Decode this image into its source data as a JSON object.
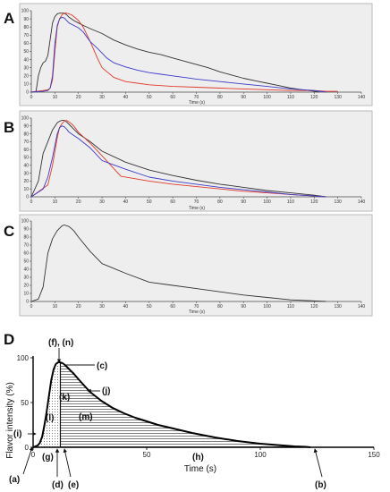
{
  "chart_data": [
    {
      "panel": "A",
      "type": "line",
      "xlabel": "Time (s)",
      "ylabel": "",
      "xlim": [
        0,
        140
      ],
      "ylim": [
        0,
        100
      ],
      "xticks": [
        0,
        10,
        20,
        30,
        40,
        50,
        60,
        70,
        80,
        90,
        100,
        110,
        120,
        130,
        140
      ],
      "yticks": [
        0,
        10,
        20,
        30,
        40,
        50,
        60,
        70,
        80,
        90,
        100
      ],
      "series": [
        {
          "color": "#333333",
          "x": [
            0,
            2,
            3,
            4,
            5,
            6,
            7,
            8,
            9,
            10,
            11,
            12,
            13,
            14,
            15,
            16,
            18,
            20,
            22,
            25,
            30,
            35,
            40,
            45,
            50,
            55,
            60,
            65,
            70,
            75,
            80,
            85,
            90,
            95,
            100,
            105,
            110,
            115,
            120,
            122
          ],
          "y": [
            0,
            1,
            20,
            30,
            36,
            38,
            45,
            65,
            85,
            93,
            96,
            97,
            97,
            97,
            95,
            92,
            88,
            85,
            82,
            78,
            72,
            64,
            58,
            53,
            49,
            46,
            42,
            38,
            34,
            30,
            25,
            21,
            17,
            14,
            11,
            8,
            5,
            3,
            1,
            0
          ]
        },
        {
          "color": "#e03a2a",
          "x": [
            0,
            5,
            7,
            8,
            9,
            10,
            11,
            12,
            13,
            14,
            15,
            16,
            17,
            18,
            20,
            22,
            25,
            28,
            30,
            35,
            40,
            45,
            50,
            55,
            60,
            70,
            80,
            90,
            100,
            110,
            120,
            125,
            130
          ],
          "y": [
            0,
            2,
            3,
            5,
            15,
            50,
            80,
            90,
            95,
            97,
            97,
            96,
            95,
            93,
            88,
            80,
            62,
            42,
            30,
            18,
            13,
            11,
            9,
            8,
            7,
            6,
            5,
            4,
            3,
            2,
            2,
            1,
            1
          ]
        },
        {
          "color": "#3a3ac8",
          "x": [
            0,
            5,
            7,
            8,
            9,
            10,
            11,
            12,
            13,
            14,
            15,
            16,
            18,
            20,
            22,
            25,
            28,
            30,
            32,
            35,
            40,
            45,
            50,
            55,
            60,
            65,
            70,
            80,
            90,
            100,
            110,
            120,
            125
          ],
          "y": [
            0,
            1,
            2,
            5,
            20,
            60,
            82,
            90,
            92,
            91,
            88,
            85,
            82,
            79,
            74,
            62,
            54,
            48,
            42,
            36,
            31,
            27,
            24,
            22,
            20,
            18,
            16,
            13,
            10,
            7,
            4,
            2,
            0
          ]
        }
      ]
    },
    {
      "panel": "B",
      "type": "line",
      "xlabel": "Time (s)",
      "ylabel": "",
      "xlim": [
        0,
        140
      ],
      "ylim": [
        0,
        100
      ],
      "xticks": [
        0,
        10,
        20,
        30,
        40,
        50,
        60,
        70,
        80,
        90,
        100,
        110,
        120,
        130,
        140
      ],
      "yticks": [
        0,
        10,
        20,
        30,
        40,
        50,
        60,
        70,
        80,
        90,
        100
      ],
      "series": [
        {
          "color": "#333333",
          "x": [
            0,
            3,
            5,
            7,
            9,
            11,
            12,
            13,
            14,
            15,
            16,
            18,
            20,
            25,
            30,
            40,
            50,
            60,
            70,
            80,
            90,
            100,
            110,
            120,
            125
          ],
          "y": [
            0,
            20,
            55,
            70,
            85,
            94,
            96,
            97,
            97,
            95,
            92,
            86,
            80,
            70,
            58,
            44,
            34,
            27,
            21,
            16,
            12,
            8,
            5,
            2,
            0
          ]
        },
        {
          "color": "#e03a2a",
          "x": [
            0,
            7,
            9,
            11,
            12,
            13,
            14,
            15,
            16,
            17,
            18,
            20,
            25,
            30,
            38,
            50,
            60,
            70,
            80,
            90,
            100,
            110,
            120,
            125
          ],
          "y": [
            0,
            15,
            40,
            75,
            88,
            93,
            96,
            97,
            95,
            93,
            90,
            82,
            68,
            52,
            26,
            20,
            16,
            13,
            10,
            7,
            5,
            3,
            1,
            0
          ]
        },
        {
          "color": "#3a3ac8",
          "x": [
            0,
            5,
            7,
            9,
            11,
            12,
            13,
            14,
            15,
            16,
            18,
            20,
            25,
            30,
            40,
            50,
            60,
            70,
            80,
            90,
            100,
            110,
            120,
            125
          ],
          "y": [
            0,
            10,
            25,
            50,
            80,
            88,
            90,
            89,
            86,
            82,
            78,
            74,
            62,
            46,
            35,
            25,
            20,
            16,
            12,
            9,
            6,
            3,
            1,
            0
          ]
        }
      ]
    },
    {
      "panel": "C",
      "type": "line",
      "xlabel": "Time (s)",
      "ylabel": "",
      "xlim": [
        0,
        140
      ],
      "ylim": [
        0,
        100
      ],
      "xticks": [
        0,
        10,
        20,
        30,
        40,
        50,
        60,
        70,
        80,
        90,
        100,
        110,
        120,
        130,
        140
      ],
      "yticks": [
        0,
        10,
        20,
        30,
        40,
        50,
        60,
        70,
        80,
        90,
        100
      ],
      "series": [
        {
          "color": "#333333",
          "x": [
            0,
            3,
            5,
            7,
            9,
            11,
            13,
            14,
            16,
            18,
            20,
            25,
            30,
            40,
            50,
            60,
            70,
            80,
            90,
            100,
            110,
            125
          ],
          "y": [
            0,
            3,
            18,
            60,
            78,
            88,
            94,
            95,
            93,
            88,
            80,
            62,
            47,
            35,
            24,
            20,
            16,
            12,
            8,
            5,
            2,
            0
          ]
        }
      ]
    },
    {
      "panel": "D",
      "type": "area",
      "xlabel": "Time (s)",
      "ylabel": "Flavor intensity (%)",
      "xlim": [
        0,
        150
      ],
      "ylim": [
        0,
        100
      ],
      "xticks": [
        0,
        50,
        100,
        150
      ],
      "yticks": [
        0,
        50,
        100
      ],
      "series": [
        {
          "color": "#000000",
          "x": [
            0,
            2,
            3,
            4,
            5,
            6,
            7,
            8,
            9,
            10,
            11,
            12,
            13,
            14,
            16,
            18,
            20,
            25,
            30,
            35,
            40,
            45,
            50,
            55,
            60,
            70,
            80,
            90,
            100,
            110,
            115,
            120,
            122
          ],
          "y": [
            0,
            2,
            5,
            12,
            25,
            40,
            58,
            75,
            87,
            93,
            95,
            95,
            94,
            92,
            87,
            82,
            76,
            62,
            52,
            44,
            38,
            33,
            29,
            25,
            22,
            16,
            11,
            7,
            4,
            2,
            1,
            0.5,
            0
          ]
        }
      ],
      "annotations": [
        "(a)",
        "(b)",
        "(c)",
        "(d)",
        "(e)",
        "(f), (n)",
        "(g)",
        "(h)",
        "(i)",
        "(j)",
        "(k)",
        "(l)",
        "(m)"
      ]
    }
  ],
  "panels": {
    "A": {
      "label": "A",
      "xlabel": "Time (s)",
      "xticks": [
        "0",
        "10",
        "20",
        "30",
        "40",
        "50",
        "60",
        "70",
        "80",
        "90",
        "100",
        "110",
        "120",
        "130",
        "140"
      ],
      "yticks": [
        "0",
        "10",
        "20",
        "30",
        "40",
        "50",
        "60",
        "70",
        "80",
        "90",
        "100"
      ]
    },
    "B": {
      "label": "B",
      "xlabel": "Time (s)",
      "xticks": [
        "0",
        "10",
        "20",
        "30",
        "40",
        "50",
        "60",
        "70",
        "80",
        "90",
        "100",
        "110",
        "120",
        "130",
        "140"
      ],
      "yticks": [
        "0",
        "10",
        "20",
        "30",
        "40",
        "50",
        "60",
        "70",
        "80",
        "90",
        "100"
      ]
    },
    "C": {
      "label": "C",
      "xlabel": "Time (s)",
      "xticks": [
        "0",
        "10",
        "20",
        "30",
        "40",
        "50",
        "60",
        "70",
        "80",
        "90",
        "100",
        "110",
        "120",
        "130",
        "140"
      ],
      "yticks": [
        "0",
        "10",
        "20",
        "30",
        "40",
        "50",
        "60",
        "70",
        "80",
        "90",
        "100"
      ]
    },
    "D": {
      "label": "D",
      "ylabel": "Flavor intensity (%)",
      "xlabel": "Time (s)",
      "xticks": [
        "0",
        "50",
        "100",
        "150"
      ],
      "yticks": [
        "0",
        "50",
        "100"
      ],
      "ann": {
        "a": "(a)",
        "b": "(b)",
        "c": "(c)",
        "d": "(d)",
        "e": "(e)",
        "fn": "(f), (n)",
        "g": "(g)",
        "h": "(h)",
        "i": "(i)",
        "j": "(j)",
        "k": "(k)",
        "l": "(l)",
        "m": "(m)"
      }
    }
  }
}
